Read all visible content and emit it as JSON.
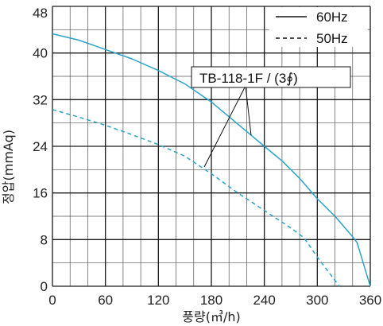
{
  "chart_data": {
    "type": "line",
    "xlabel": "풍량(㎥/h)",
    "ylabel": "정압(mmAq)",
    "xlim": [
      0,
      360
    ],
    "ylim": [
      0,
      48
    ],
    "xticks": [
      0,
      60,
      120,
      180,
      240,
      300,
      360
    ],
    "yticks": [
      8,
      16,
      24,
      32,
      40,
      48
    ],
    "grid": true,
    "legend_position": "top-right",
    "annotation": "TB-118-1F / (3∮)",
    "colors": {
      "curve": "#2aa3c9",
      "grid": "#1a1a1a",
      "axis": "#111111"
    },
    "series": [
      {
        "name": "60Hz",
        "style": "solid",
        "x": [
          0,
          30,
          60,
          90,
          120,
          150,
          180,
          210,
          240,
          260,
          280,
          300,
          320,
          340,
          345,
          350,
          355,
          360
        ],
        "y": [
          43.3,
          42.2,
          40.6,
          39.0,
          37.0,
          34.7,
          31.6,
          27.8,
          24.0,
          21.5,
          18.5,
          15.0,
          12.0,
          8.5,
          7.5,
          5.0,
          2.5,
          0
        ]
      },
      {
        "name": "50Hz",
        "style": "dashed",
        "x": [
          0,
          30,
          60,
          90,
          120,
          150,
          180,
          210,
          240,
          270,
          285,
          300,
          310,
          320,
          325
        ],
        "y": [
          30.3,
          29.0,
          27.6,
          26.0,
          24.3,
          22.3,
          19.3,
          16.0,
          13.0,
          10.0,
          8.3,
          5.0,
          3.0,
          1.0,
          0
        ]
      }
    ]
  }
}
